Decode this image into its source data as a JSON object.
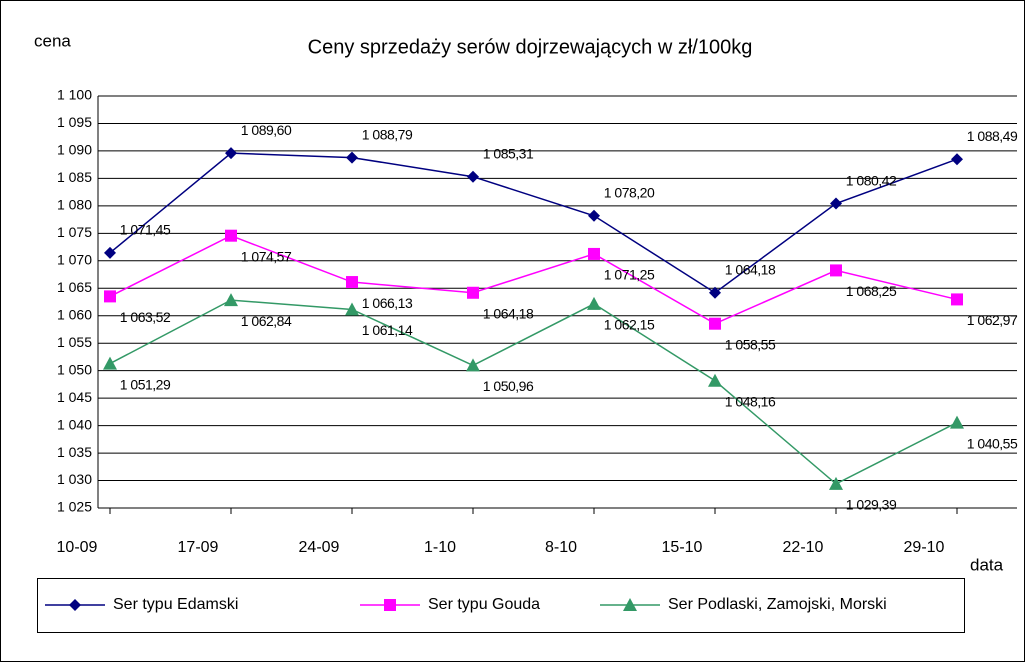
{
  "chart_data": {
    "type": "line",
    "title": "Ceny sprzedaży serów dojrzewających w zł/100kg",
    "y_label": "cena",
    "x_label": "data",
    "categories": [
      "10-09",
      "17-09",
      "24-09",
      "1-10",
      "8-10",
      "15-10",
      "22-10",
      "29-10"
    ],
    "series": [
      {
        "name": "Ser typu Edamski",
        "color": "#000080",
        "marker": "diamond",
        "values": [
          1071.45,
          1089.6,
          1088.79,
          1085.31,
          1078.2,
          1064.18,
          1080.42,
          1088.49
        ],
        "value_labels": [
          "1 071,45",
          "1 089,60",
          "1 088,79",
          "1 085,31",
          "1 078,20",
          "1 064,18",
          "1 080,42",
          "1 088,49"
        ]
      },
      {
        "name": "Ser typu Gouda",
        "color": "#ff00ff",
        "marker": "square",
        "values": [
          1063.52,
          1074.57,
          1066.13,
          1064.18,
          1071.25,
          1058.55,
          1068.25,
          1062.97
        ],
        "value_labels": [
          "1 063,52",
          "1 074,57",
          "1 066,13",
          "1 064,18",
          "1 071,25",
          "1 058,55",
          "1 068,25",
          "1 062,97"
        ]
      },
      {
        "name": "Ser Podlaski, Zamojski, Morski",
        "color": "#339966",
        "marker": "triangle",
        "values": [
          1051.29,
          1062.84,
          1061.14,
          1050.96,
          1062.15,
          1048.16,
          1029.39,
          1040.55
        ],
        "value_labels": [
          "1 051,29",
          "1 062,84",
          "1 061,14",
          "1 050,96",
          "1 062,15",
          "1 048,16",
          "1 029,39",
          "1 040,55"
        ]
      }
    ],
    "ylim": [
      1025,
      1100
    ],
    "yticks": [
      {
        "value": 1025,
        "label": "1 025"
      },
      {
        "value": 1030,
        "label": "1 030"
      },
      {
        "value": 1035,
        "label": "1 035"
      },
      {
        "value": 1040,
        "label": "1 040"
      },
      {
        "value": 1045,
        "label": "1 045"
      },
      {
        "value": 1050,
        "label": "1 050"
      },
      {
        "value": 1055,
        "label": "1 055"
      },
      {
        "value": 1060,
        "label": "1 060"
      },
      {
        "value": 1065,
        "label": "1 065"
      },
      {
        "value": 1070,
        "label": "1 070"
      },
      {
        "value": 1075,
        "label": "1 075"
      },
      {
        "value": 1080,
        "label": "1 080"
      },
      {
        "value": 1085,
        "label": "1 085"
      },
      {
        "value": 1090,
        "label": "1 090"
      },
      {
        "value": 1095,
        "label": "1 095"
      },
      {
        "value": 1100,
        "label": "1 100"
      }
    ],
    "grid": true,
    "legend": "bottom"
  }
}
